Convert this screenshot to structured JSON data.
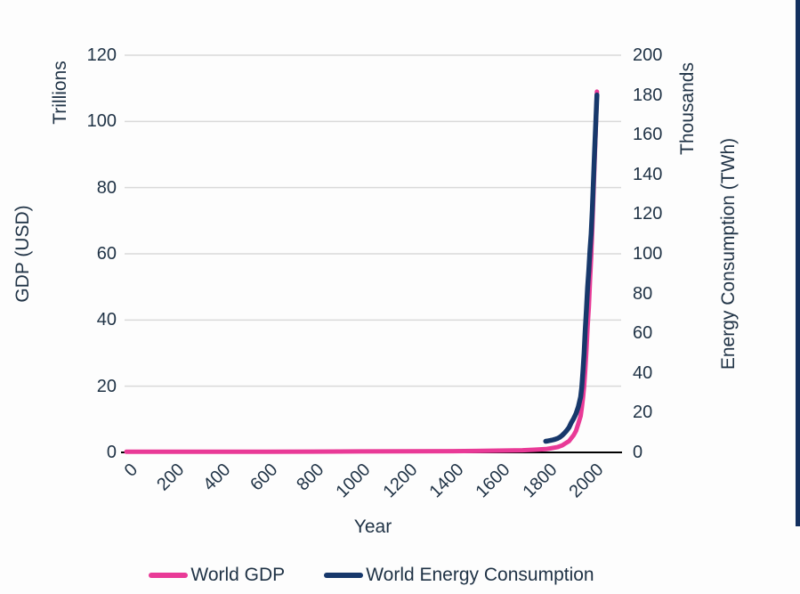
{
  "chart_data": {
    "type": "line",
    "title": "",
    "xlabel": "Year",
    "ylabel_left": "GDP (USD)",
    "ylabel_left_unit": "Trillions",
    "ylabel_right": "Energy Consumption (TWh)",
    "ylabel_right_unit": "Thousands",
    "x_ticks": [
      0,
      200,
      400,
      600,
      800,
      1000,
      1200,
      1400,
      1600,
      1800,
      2000
    ],
    "y_left_ticks": [
      0,
      20,
      40,
      60,
      80,
      100,
      120
    ],
    "y_right_ticks": [
      0,
      20,
      40,
      60,
      80,
      100,
      120,
      140,
      160,
      180,
      200
    ],
    "x_range": [
      0,
      2120
    ],
    "y_left_range": [
      0,
      120
    ],
    "y_right_range": [
      0,
      200
    ],
    "grid": true,
    "legend_position": "bottom",
    "colors": {
      "grid": "#D9D9D9",
      "axis_line": "#000000",
      "text": "#1F3245",
      "accent_bar": "#13305F",
      "background": "#FDFDFD"
    },
    "series": [
      {
        "name": "World GDP",
        "axis": "left",
        "color": "#E93A97",
        "units": "trillions USD",
        "points": [
          [
            0,
            0.18
          ],
          [
            200,
            0.19
          ],
          [
            400,
            0.2
          ],
          [
            600,
            0.21
          ],
          [
            800,
            0.24
          ],
          [
            1000,
            0.3
          ],
          [
            1200,
            0.35
          ],
          [
            1400,
            0.38
          ],
          [
            1500,
            0.43
          ],
          [
            1600,
            0.55
          ],
          [
            1700,
            0.65
          ],
          [
            1750,
            0.8
          ],
          [
            1800,
            1.0
          ],
          [
            1820,
            1.2
          ],
          [
            1850,
            1.6
          ],
          [
            1870,
            2.1
          ],
          [
            1900,
            3.4
          ],
          [
            1910,
            4.3
          ],
          [
            1920,
            5.2
          ],
          [
            1930,
            6.5
          ],
          [
            1940,
            8.7
          ],
          [
            1950,
            11
          ],
          [
            1955,
            13.5
          ],
          [
            1960,
            16.5
          ],
          [
            1965,
            20
          ],
          [
            1970,
            25
          ],
          [
            1975,
            31
          ],
          [
            1980,
            38
          ],
          [
            1985,
            44
          ],
          [
            1990,
            52
          ],
          [
            1995,
            59
          ],
          [
            2000,
            68
          ],
          [
            2005,
            78
          ],
          [
            2010,
            88
          ],
          [
            2015,
            98
          ],
          [
            2020,
            109
          ]
        ]
      },
      {
        "name": "World Energy Consumption",
        "axis": "right",
        "color": "#17386B",
        "units": "thousand TWh",
        "points": [
          [
            1800,
            5.6
          ],
          [
            1810,
            5.8
          ],
          [
            1820,
            6.0
          ],
          [
            1830,
            6.3
          ],
          [
            1840,
            6.6
          ],
          [
            1850,
            7.0
          ],
          [
            1860,
            7.6
          ],
          [
            1870,
            8.5
          ],
          [
            1880,
            9.7
          ],
          [
            1890,
            11
          ],
          [
            1900,
            12.5
          ],
          [
            1910,
            15
          ],
          [
            1920,
            17
          ],
          [
            1930,
            19.5
          ],
          [
            1940,
            23
          ],
          [
            1950,
            28
          ],
          [
            1955,
            33
          ],
          [
            1960,
            41
          ],
          [
            1965,
            50
          ],
          [
            1970,
            62
          ],
          [
            1975,
            72
          ],
          [
            1980,
            83
          ],
          [
            1985,
            92
          ],
          [
            1990,
            102
          ],
          [
            1995,
            110
          ],
          [
            2000,
            122
          ],
          [
            2005,
            137
          ],
          [
            2010,
            152
          ],
          [
            2015,
            166
          ],
          [
            2020,
            180
          ]
        ]
      }
    ]
  }
}
